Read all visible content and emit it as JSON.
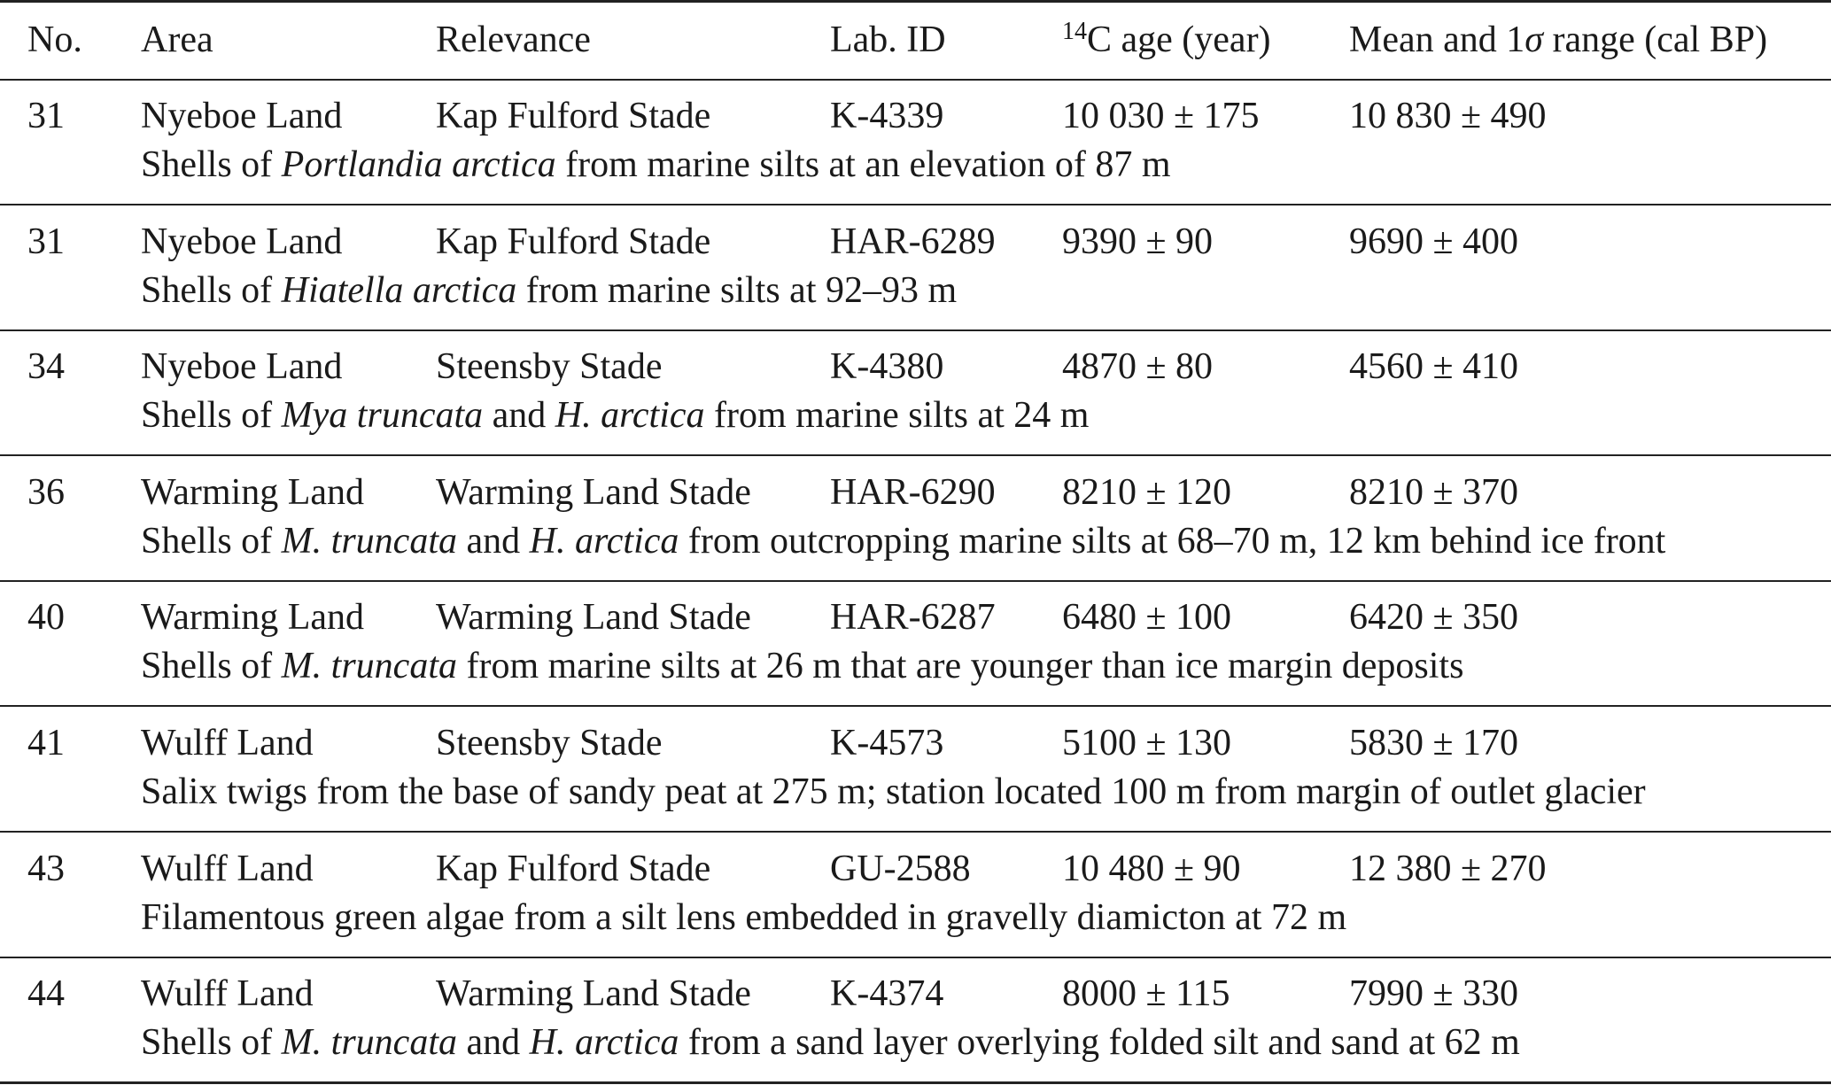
{
  "table": {
    "header": {
      "no": "No.",
      "area": "Area",
      "relevance": "Relevance",
      "lab_id": "Lab. ID",
      "age_sup": "14",
      "age_rest": "C age (year)",
      "cal_pre": "Mean and 1",
      "cal_sigma": "σ",
      "cal_post": " range (cal BP)"
    },
    "rows": [
      {
        "no": "31",
        "area": "Nyeboe Land",
        "relevance": "Kap Fulford Stade",
        "lab_id": "K-4339",
        "age": "10 030 ± 175",
        "cal": "10 830 ± 490",
        "desc": [
          {
            "text": "Shells of ",
            "italic": false
          },
          {
            "text": "Portlandia arctica",
            "italic": true
          },
          {
            "text": " from marine silts at an elevation of 87 m",
            "italic": false
          }
        ]
      },
      {
        "no": "31",
        "area": "Nyeboe Land",
        "relevance": "Kap Fulford Stade",
        "lab_id": "HAR-6289",
        "age": "9390 ± 90",
        "cal": "9690 ± 400",
        "desc": [
          {
            "text": "Shells of ",
            "italic": false
          },
          {
            "text": "Hiatella arctica",
            "italic": true
          },
          {
            "text": " from marine silts at 92–93 m",
            "italic": false
          }
        ]
      },
      {
        "no": "34",
        "area": "Nyeboe Land",
        "relevance": "Steensby Stade",
        "lab_id": "K-4380",
        "age": "4870 ± 80",
        "cal": "4560 ± 410",
        "desc": [
          {
            "text": "Shells of ",
            "italic": false
          },
          {
            "text": "Mya truncata",
            "italic": true
          },
          {
            "text": " and ",
            "italic": false
          },
          {
            "text": "H. arctica",
            "italic": true
          },
          {
            "text": " from marine silts at 24 m",
            "italic": false
          }
        ]
      },
      {
        "no": "36",
        "area": "Warming Land",
        "relevance": "Warming Land Stade",
        "lab_id": "HAR-6290",
        "age": "8210 ± 120",
        "cal": "8210 ± 370",
        "desc": [
          {
            "text": "Shells of ",
            "italic": false
          },
          {
            "text": "M. truncata",
            "italic": true
          },
          {
            "text": " and ",
            "italic": false
          },
          {
            "text": "H. arctica",
            "italic": true
          },
          {
            "text": " from outcropping marine silts at 68–70 m, 12 km behind ice front",
            "italic": false
          }
        ]
      },
      {
        "no": "40",
        "area": "Warming Land",
        "relevance": "Warming Land Stade",
        "lab_id": "HAR-6287",
        "age": "6480 ± 100",
        "cal": "6420 ± 350",
        "desc": [
          {
            "text": "Shells of ",
            "italic": false
          },
          {
            "text": "M. truncata",
            "italic": true
          },
          {
            "text": " from marine silts at 26 m that are younger than ice margin deposits",
            "italic": false
          }
        ]
      },
      {
        "no": "41",
        "area": "Wulff Land",
        "relevance": "Steensby Stade",
        "lab_id": "K-4573",
        "age": "5100 ± 130",
        "cal": "5830 ± 170",
        "desc": [
          {
            "text": "Salix twigs from the base of sandy peat at 275 m; station located 100 m from margin of outlet glacier",
            "italic": false
          }
        ]
      },
      {
        "no": "43",
        "area": "Wulff Land",
        "relevance": "Kap Fulford Stade",
        "lab_id": "GU-2588",
        "age": "10 480 ± 90",
        "cal": "12 380 ± 270",
        "desc": [
          {
            "text": "Filamentous green algae from a silt lens embedded in gravelly diamicton at 72 m",
            "italic": false
          }
        ]
      },
      {
        "no": "44",
        "area": "Wulff Land",
        "relevance": "Warming Land Stade",
        "lab_id": "K-4374",
        "age": "8000 ± 115",
        "cal": "7990 ± 330",
        "desc": [
          {
            "text": "Shells of ",
            "italic": false
          },
          {
            "text": "M. truncata",
            "italic": true
          },
          {
            "text": " and ",
            "italic": false
          },
          {
            "text": "H. arctica",
            "italic": true
          },
          {
            "text": " from a sand layer overlying folded silt and sand at 62 m",
            "italic": false
          }
        ]
      }
    ]
  }
}
